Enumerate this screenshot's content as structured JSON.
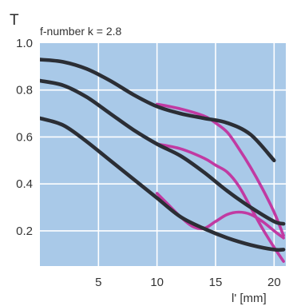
{
  "chart_data": {
    "type": "line",
    "ylabel": "T",
    "subtitle": "f-number k = 2.8",
    "xlabel": "l' [mm]",
    "xlim": [
      0,
      21
    ],
    "ylim": [
      0.05,
      1.0
    ],
    "x_ticks": [
      "5",
      "10",
      "15",
      "20"
    ],
    "y_ticks": [
      "1.0",
      "0.8",
      "0.6",
      "0.4",
      "0.2"
    ],
    "grid": true,
    "background_color": "#a9c9e8",
    "series_colors": {
      "black": "#2b2e35",
      "magenta": "#c13aa2"
    },
    "series": [
      {
        "color_key": "black",
        "x": [
          0,
          2,
          4,
          6,
          8,
          10,
          12,
          14,
          16,
          18,
          20
        ],
        "y": [
          0.93,
          0.92,
          0.89,
          0.84,
          0.78,
          0.73,
          0.7,
          0.68,
          0.66,
          0.61,
          0.5
        ]
      },
      {
        "color_key": "magenta",
        "x": [
          10,
          12,
          14,
          15,
          16,
          17,
          18,
          19,
          20,
          20.8
        ],
        "y": [
          0.74,
          0.72,
          0.69,
          0.66,
          0.62,
          0.55,
          0.47,
          0.38,
          0.28,
          0.18
        ]
      },
      {
        "color_key": "black",
        "x": [
          0,
          2,
          4,
          6,
          8,
          10,
          12,
          14,
          16,
          18,
          20,
          20.8
        ],
        "y": [
          0.84,
          0.82,
          0.77,
          0.7,
          0.63,
          0.57,
          0.52,
          0.45,
          0.37,
          0.3,
          0.24,
          0.23
        ]
      },
      {
        "color_key": "magenta",
        "x": [
          10,
          12,
          14,
          15,
          16,
          17,
          18,
          19,
          20,
          20.8
        ],
        "y": [
          0.57,
          0.55,
          0.51,
          0.48,
          0.45,
          0.39,
          0.3,
          0.21,
          0.13,
          0.07
        ]
      },
      {
        "color_key": "black",
        "x": [
          0,
          2,
          4,
          6,
          8,
          10,
          12,
          14,
          16,
          18,
          20,
          20.8
        ],
        "y": [
          0.68,
          0.65,
          0.58,
          0.5,
          0.42,
          0.34,
          0.26,
          0.21,
          0.17,
          0.14,
          0.12,
          0.12
        ]
      },
      {
        "color_key": "magenta",
        "x": [
          10,
          11,
          12,
          13,
          14,
          15,
          16,
          17,
          18,
          19,
          20,
          20.8
        ],
        "y": [
          0.36,
          0.31,
          0.26,
          0.22,
          0.21,
          0.24,
          0.27,
          0.28,
          0.27,
          0.24,
          0.2,
          0.17
        ]
      }
    ]
  }
}
